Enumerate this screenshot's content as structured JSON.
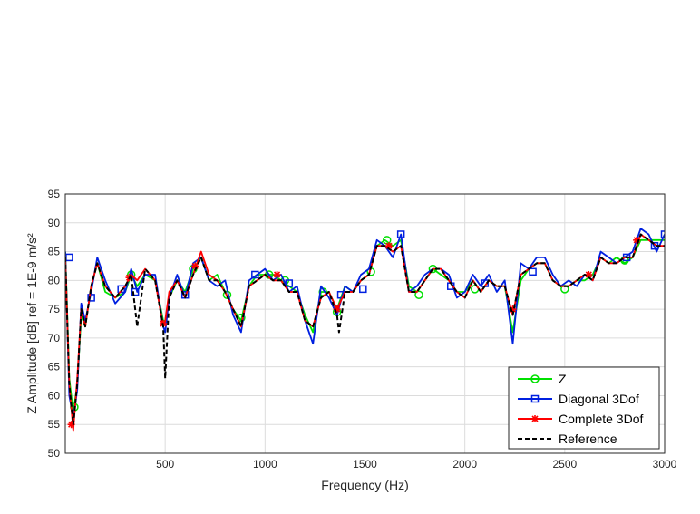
{
  "chart_data": {
    "type": "line",
    "title": "",
    "xlabel": "Frequency (Hz)",
    "ylabel": "Z Amplitude [dB] ref = 1E-9 m/s²",
    "xlim": [
      0,
      3000
    ],
    "ylim": [
      50,
      95
    ],
    "xticks": [
      500,
      1000,
      1500,
      2000,
      2500,
      3000
    ],
    "yticks": [
      50,
      55,
      60,
      65,
      70,
      75,
      80,
      85,
      90,
      95
    ],
    "grid": true,
    "legend_position": "bottom-right",
    "series": [
      {
        "name": "Z",
        "color": "#00e000",
        "marker": "circle",
        "x": [
          0,
          20,
          40,
          60,
          80,
          100,
          130,
          160,
          200,
          250,
          300,
          330,
          360,
          400,
          450,
          490,
          500,
          520,
          560,
          600,
          640,
          680,
          720,
          760,
          800,
          840,
          880,
          920,
          960,
          1000,
          1040,
          1080,
          1120,
          1160,
          1200,
          1240,
          1280,
          1320,
          1360,
          1400,
          1440,
          1480,
          1520,
          1560,
          1600,
          1640,
          1680,
          1720,
          1760,
          1800,
          1840,
          1880,
          1920,
          1960,
          2000,
          2040,
          2080,
          2120,
          2160,
          2200,
          2240,
          2280,
          2320,
          2360,
          2400,
          2440,
          2480,
          2520,
          2560,
          2600,
          2640,
          2680,
          2720,
          2760,
          2800,
          2840,
          2880,
          2920,
          2960,
          3000
        ],
        "y": [
          85,
          63,
          57,
          62,
          74,
          72,
          79,
          83,
          78,
          77,
          78,
          81,
          79,
          81,
          80,
          73,
          73,
          77,
          80,
          78,
          82,
          84,
          80,
          81,
          78,
          75,
          73,
          79,
          81,
          81,
          81,
          80,
          79,
          78,
          74,
          71,
          78,
          78,
          75,
          79,
          78,
          80,
          81,
          86,
          87,
          86,
          87,
          79,
          78,
          80,
          82,
          81,
          80,
          78,
          78,
          80,
          78,
          80,
          79,
          79,
          71,
          80,
          82,
          83,
          83,
          80,
          79,
          79,
          80,
          80,
          81,
          84,
          83,
          84,
          83,
          84,
          87,
          87,
          87,
          87
        ],
        "marker_x": [
          45,
          330,
          640,
          810,
          880,
          1020,
          1100,
          1290,
          1360,
          1530,
          1610,
          1770,
          1840,
          2050,
          2500,
          2800
        ],
        "marker_y": [
          58,
          81,
          82,
          77.5,
          73.5,
          81,
          80,
          78,
          74.5,
          81.5,
          87,
          77.5,
          82,
          78.5,
          78.5,
          83.5
        ]
      },
      {
        "name": "Diagonal 3Dof",
        "color": "#0020e0",
        "marker": "square",
        "x": [
          0,
          20,
          40,
          60,
          80,
          100,
          130,
          160,
          200,
          250,
          300,
          330,
          360,
          400,
          450,
          490,
          500,
          520,
          560,
          600,
          640,
          680,
          720,
          760,
          800,
          840,
          880,
          920,
          960,
          1000,
          1040,
          1080,
          1120,
          1160,
          1200,
          1240,
          1280,
          1320,
          1360,
          1400,
          1440,
          1480,
          1520,
          1560,
          1600,
          1640,
          1680,
          1720,
          1760,
          1800,
          1840,
          1880,
          1920,
          1960,
          2000,
          2040,
          2080,
          2120,
          2160,
          2200,
          2240,
          2280,
          2320,
          2360,
          2400,
          2440,
          2480,
          2520,
          2560,
          2600,
          2640,
          2680,
          2720,
          2760,
          2800,
          2840,
          2880,
          2920,
          2960,
          3000
        ],
        "y": [
          85,
          60,
          56,
          61,
          76,
          73,
          78,
          84,
          80,
          76,
          78,
          82,
          78,
          81,
          81,
          72,
          71,
          77,
          81,
          77,
          83,
          84,
          80,
          79,
          80,
          74,
          71,
          80,
          81,
          82,
          80,
          81,
          78,
          79,
          73,
          69,
          79,
          77,
          74,
          79,
          78,
          81,
          82,
          87,
          86,
          84,
          88,
          78,
          79,
          81,
          82,
          82,
          81,
          77,
          78,
          81,
          79,
          81,
          78,
          80,
          69,
          83,
          82,
          84,
          84,
          81,
          79,
          80,
          79,
          81,
          80,
          85,
          84,
          83,
          84,
          85,
          89,
          88,
          85,
          88
        ],
        "marker_x": [
          20,
          130,
          280,
          350,
          600,
          950,
          1120,
          1380,
          1490,
          1680,
          1930,
          2100,
          2340,
          2810,
          2950,
          3000
        ],
        "marker_y": [
          84,
          77,
          78.5,
          78,
          77.5,
          81,
          79.5,
          77.5,
          78.5,
          88,
          79,
          79.5,
          81.5,
          84,
          86,
          88
        ]
      },
      {
        "name": "Complete 3Dof",
        "color": "#ff0000",
        "marker": "star",
        "x": [
          0,
          20,
          40,
          60,
          80,
          100,
          130,
          160,
          200,
          250,
          300,
          330,
          360,
          400,
          450,
          490,
          500,
          520,
          560,
          600,
          640,
          680,
          720,
          760,
          800,
          840,
          880,
          920,
          960,
          1000,
          1040,
          1080,
          1120,
          1160,
          1200,
          1240,
          1280,
          1320,
          1360,
          1400,
          1440,
          1480,
          1520,
          1560,
          1600,
          1640,
          1680,
          1720,
          1760,
          1800,
          1840,
          1880,
          1920,
          1960,
          2000,
          2040,
          2080,
          2120,
          2160,
          2200,
          2240,
          2280,
          2320,
          2360,
          2400,
          2440,
          2480,
          2520,
          2560,
          2600,
          2640,
          2680,
          2720,
          2760,
          2800,
          2840,
          2880,
          2920,
          2960,
          3000
        ],
        "y": [
          84,
          62,
          54,
          63,
          75,
          72,
          79,
          83,
          79,
          77,
          79,
          81,
          80,
          82,
          80,
          72,
          73,
          78,
          80,
          77,
          81,
          85,
          81,
          80,
          78,
          75,
          72,
          79,
          80,
          81,
          80,
          80,
          78,
          78,
          73,
          72,
          77,
          78,
          75,
          78,
          78,
          80,
          81,
          86,
          86,
          85,
          86,
          78,
          78,
          80,
          82,
          82,
          80,
          78,
          77,
          80,
          78,
          80,
          79,
          79,
          74,
          81,
          82,
          83,
          83,
          80,
          79,
          79,
          80,
          81,
          80,
          84,
          83,
          83,
          84,
          84,
          88,
          87,
          86,
          86
        ],
        "marker_x": [
          30,
          320,
          490,
          650,
          1060,
          1360,
          1620,
          2240,
          2620,
          2860
        ],
        "marker_y": [
          55,
          80.5,
          72.5,
          82.5,
          81,
          75,
          86,
          75,
          81,
          87
        ]
      },
      {
        "name": "Reference",
        "color": "#000000",
        "marker": "none",
        "dashed": true,
        "x": [
          0,
          20,
          40,
          60,
          80,
          100,
          130,
          160,
          200,
          250,
          300,
          330,
          360,
          400,
          450,
          490,
          500,
          520,
          560,
          600,
          640,
          680,
          720,
          760,
          800,
          840,
          880,
          920,
          960,
          1000,
          1040,
          1080,
          1120,
          1160,
          1200,
          1240,
          1280,
          1320,
          1360,
          1370,
          1400,
          1440,
          1480,
          1520,
          1560,
          1600,
          1640,
          1680,
          1720,
          1760,
          1800,
          1840,
          1880,
          1920,
          1960,
          2000,
          2040,
          2080,
          2120,
          2160,
          2200,
          2240,
          2280,
          2320,
          2360,
          2400,
          2440,
          2480,
          2520,
          2560,
          2600,
          2640,
          2680,
          2720,
          2760,
          2800,
          2840,
          2880,
          2920,
          2960,
          3000
        ],
        "y": [
          84,
          62,
          55,
          62,
          75,
          72,
          79,
          83,
          79,
          77,
          79,
          81,
          72,
          82,
          80,
          72,
          63,
          77,
          80,
          77,
          81,
          84,
          80,
          80,
          78,
          75,
          72,
          79,
          80,
          81,
          80,
          80,
          78,
          78,
          73,
          72,
          77,
          78,
          74,
          71,
          78,
          78,
          80,
          81,
          86,
          86,
          85,
          86,
          78,
          78,
          80,
          82,
          82,
          80,
          78,
          77,
          80,
          78,
          80,
          79,
          79,
          74,
          81,
          82,
          83,
          83,
          80,
          79,
          79,
          80,
          81,
          80,
          84,
          83,
          83,
          84,
          84,
          88,
          87,
          86,
          86
        ]
      }
    ]
  }
}
